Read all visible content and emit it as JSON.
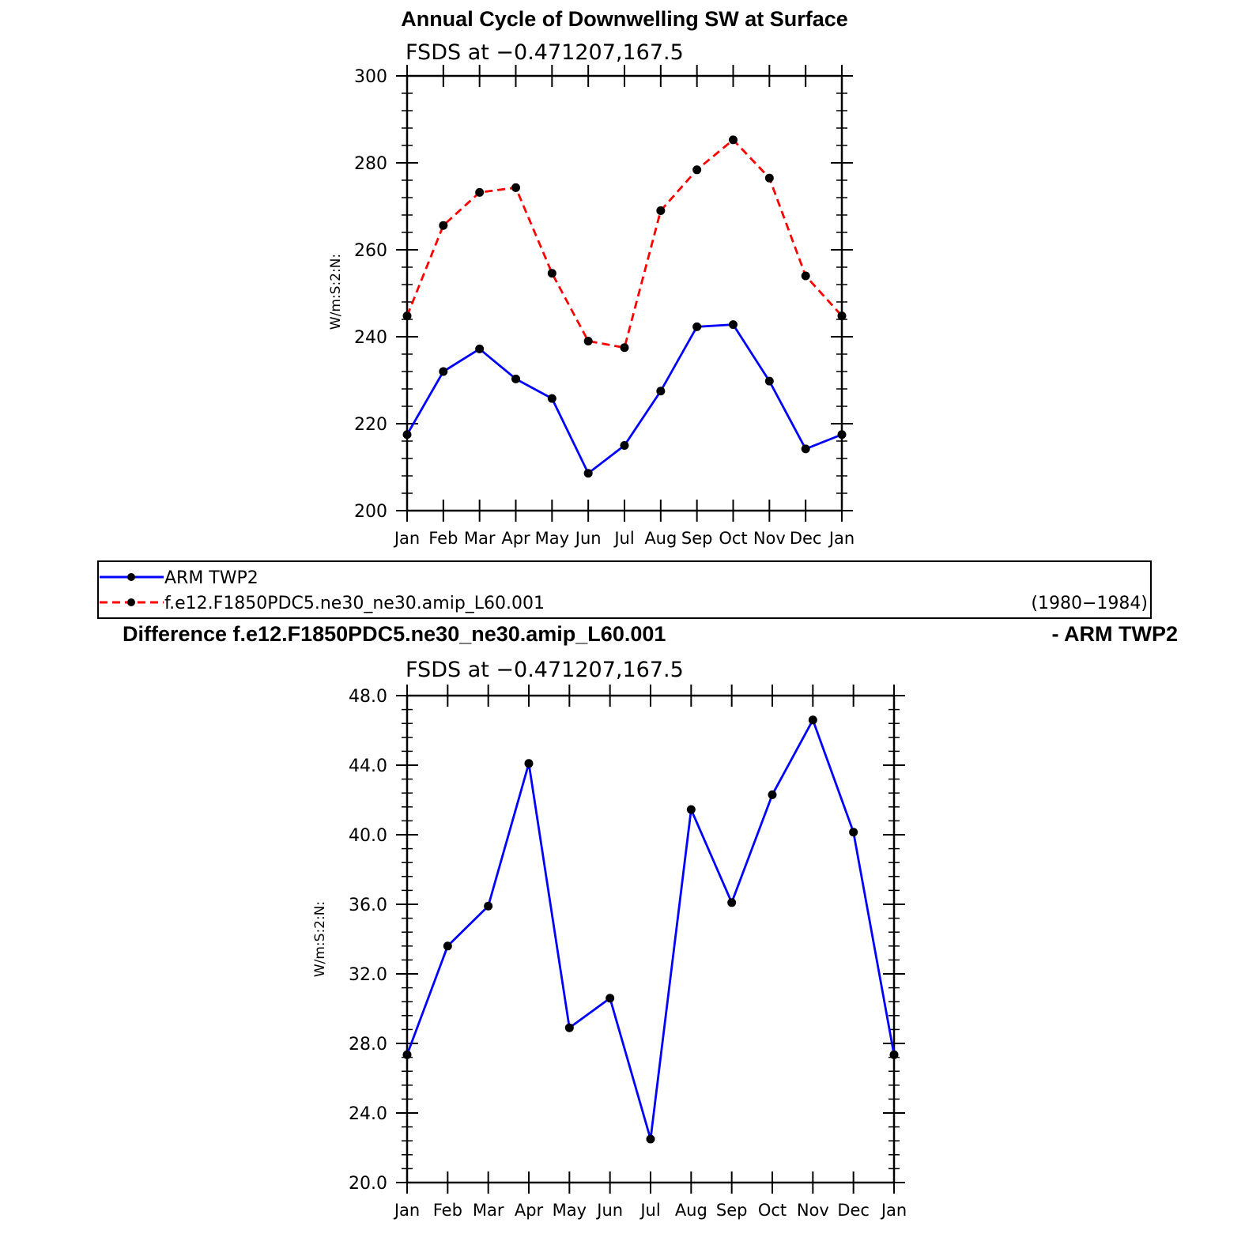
{
  "chart_data": [
    {
      "type": "line",
      "title": "Annual Cycle of Downwelling SW at Surface",
      "subtitle": "FSDS at −0.471207,167.5",
      "ylabel": "W/m:S:2:N:",
      "xlabel": "",
      "ylim": [
        200,
        300
      ],
      "yticks": [
        "200",
        "220",
        "240",
        "260",
        "280",
        "300"
      ],
      "yticks_values": [
        200,
        220,
        240,
        260,
        280,
        300
      ],
      "categories": [
        "Jan",
        "Feb",
        "Mar",
        "Apr",
        "May",
        "Jun",
        "Jul",
        "Aug",
        "Sep",
        "Oct",
        "Nov",
        "Dec",
        "Jan"
      ],
      "series": [
        {
          "name": "ARM TWP2",
          "color": "#0000ff",
          "dash": "solid",
          "values": [
            217.5,
            232,
            237.2,
            230.3,
            225.8,
            208.6,
            215,
            227.5,
            242.3,
            242.8,
            229.8,
            214.2,
            217.5
          ]
        },
        {
          "name": "f.e12.F1850PDC5.ne30_ne30.amip_L60.001",
          "color": "#ff0000",
          "dash": "dashed",
          "values": [
            244.8,
            265.6,
            273.2,
            274.3,
            254.6,
            239,
            237.5,
            269,
            278.4,
            285.3,
            276.5,
            254,
            244.8
          ]
        }
      ],
      "legend": {
        "placement": "below",
        "entries": [
          "ARM TWP2",
          "f.e12.F1850PDC5.ne30_ne30.amip_L60.001"
        ],
        "period": "(1980−1984)"
      }
    },
    {
      "type": "line",
      "title_left": "Difference f.e12.F1850PDC5.ne30_ne30.amip_L60.001",
      "title_right": "- ARM TWP2",
      "subtitle": "FSDS at −0.471207,167.5",
      "ylabel": "W/m:S:2:N:",
      "xlabel": "",
      "ylim": [
        20,
        48
      ],
      "yticks": [
        "20.0",
        "24.0",
        "28.0",
        "32.0",
        "36.0",
        "40.0",
        "44.0",
        "48.0"
      ],
      "yticks_values": [
        20,
        24,
        28,
        32,
        36,
        40,
        44,
        48
      ],
      "categories": [
        "Jan",
        "Feb",
        "Mar",
        "Apr",
        "May",
        "Jun",
        "Jul",
        "Aug",
        "Sep",
        "Oct",
        "Nov",
        "Dec",
        "Jan"
      ],
      "series": [
        {
          "color": "#0000ff",
          "dash": "solid",
          "values": [
            27.35,
            33.6,
            35.9,
            44.1,
            28.9,
            30.6,
            22.5,
            41.45,
            36.1,
            42.3,
            46.6,
            40.15,
            27.35
          ]
        }
      ]
    }
  ]
}
